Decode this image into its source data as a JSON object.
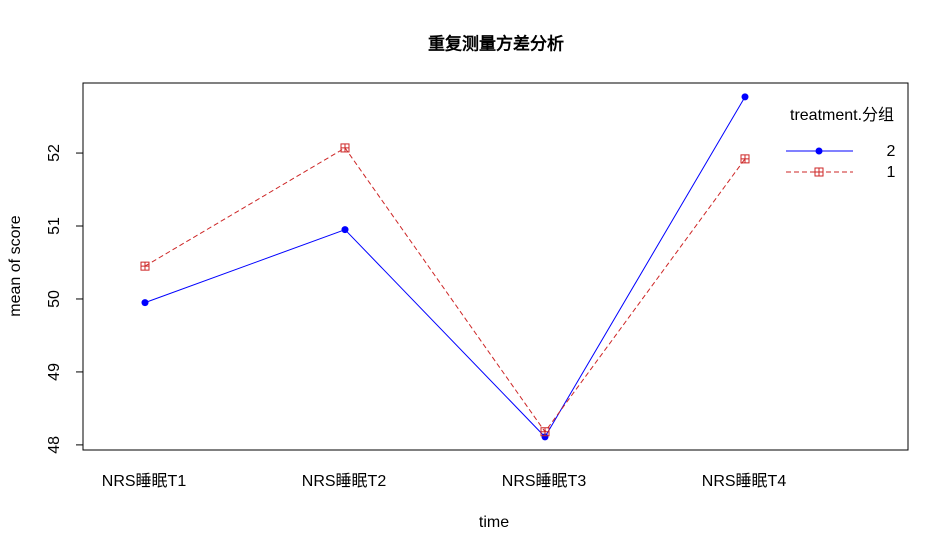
{
  "chart_data": {
    "type": "line",
    "title": "重复测量方差分析",
    "x_label": "time",
    "y_label": "mean of  score",
    "categories": [
      "NRS睡眠T1",
      "NRS睡眠T2",
      "NRS睡眠T3",
      "NRS睡眠T4"
    ],
    "ylim": [
      47.93,
      52.96
    ],
    "yticks": [
      48,
      49,
      50,
      51,
      52
    ],
    "legend_title": "treatment.分组",
    "legend_position": "top-right",
    "series": [
      {
        "name": "2",
        "color": "#0000ff",
        "dash": "solid",
        "marker": "circle",
        "values": [
          49.95,
          50.95,
          48.11,
          52.77
        ]
      },
      {
        "name": "1",
        "color": "#cd2626",
        "dash": "dashed",
        "marker": "square-plus",
        "values": [
          50.45,
          52.07,
          48.18,
          51.92
        ]
      }
    ]
  }
}
